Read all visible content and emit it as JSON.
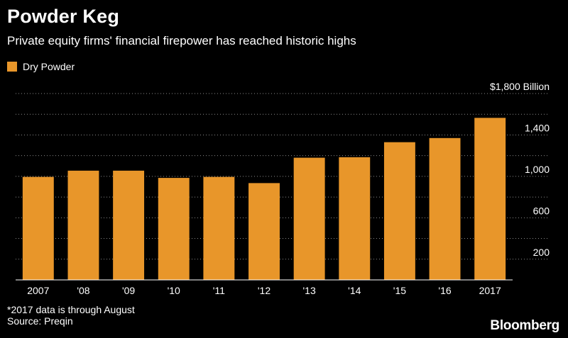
{
  "chart_data": {
    "type": "bar",
    "title": "Powder Keg",
    "subtitle": "Private equity firms' financial firepower has reached historic highs",
    "categories": [
      "2007",
      "'08",
      "'09",
      "'10",
      "'11",
      "'12",
      "'13",
      "'14",
      "'15",
      "'16",
      "2017"
    ],
    "series": [
      {
        "name": "Dry Powder",
        "color": "#e8962a",
        "values": [
          995,
          1055,
          1055,
          985,
          995,
          935,
          1180,
          1185,
          1330,
          1370,
          1565
        ]
      }
    ],
    "ylim": [
      0,
      1800
    ],
    "y_ticks": [
      {
        "value": 1800,
        "label": "$1,800 Billion"
      },
      {
        "value": 1400,
        "label": "1,400"
      },
      {
        "value": 1000,
        "label": "1,000"
      },
      {
        "value": 600,
        "label": "600"
      },
      {
        "value": 200,
        "label": "200"
      }
    ],
    "grid_values": [
      200,
      400,
      600,
      800,
      1000,
      1200,
      1400,
      1600,
      1800
    ],
    "grid": true,
    "legend_position": "top-left"
  },
  "footnotes": [
    "*2017 data is through August",
    "Source: Preqin"
  ],
  "brand": "Bloomberg"
}
